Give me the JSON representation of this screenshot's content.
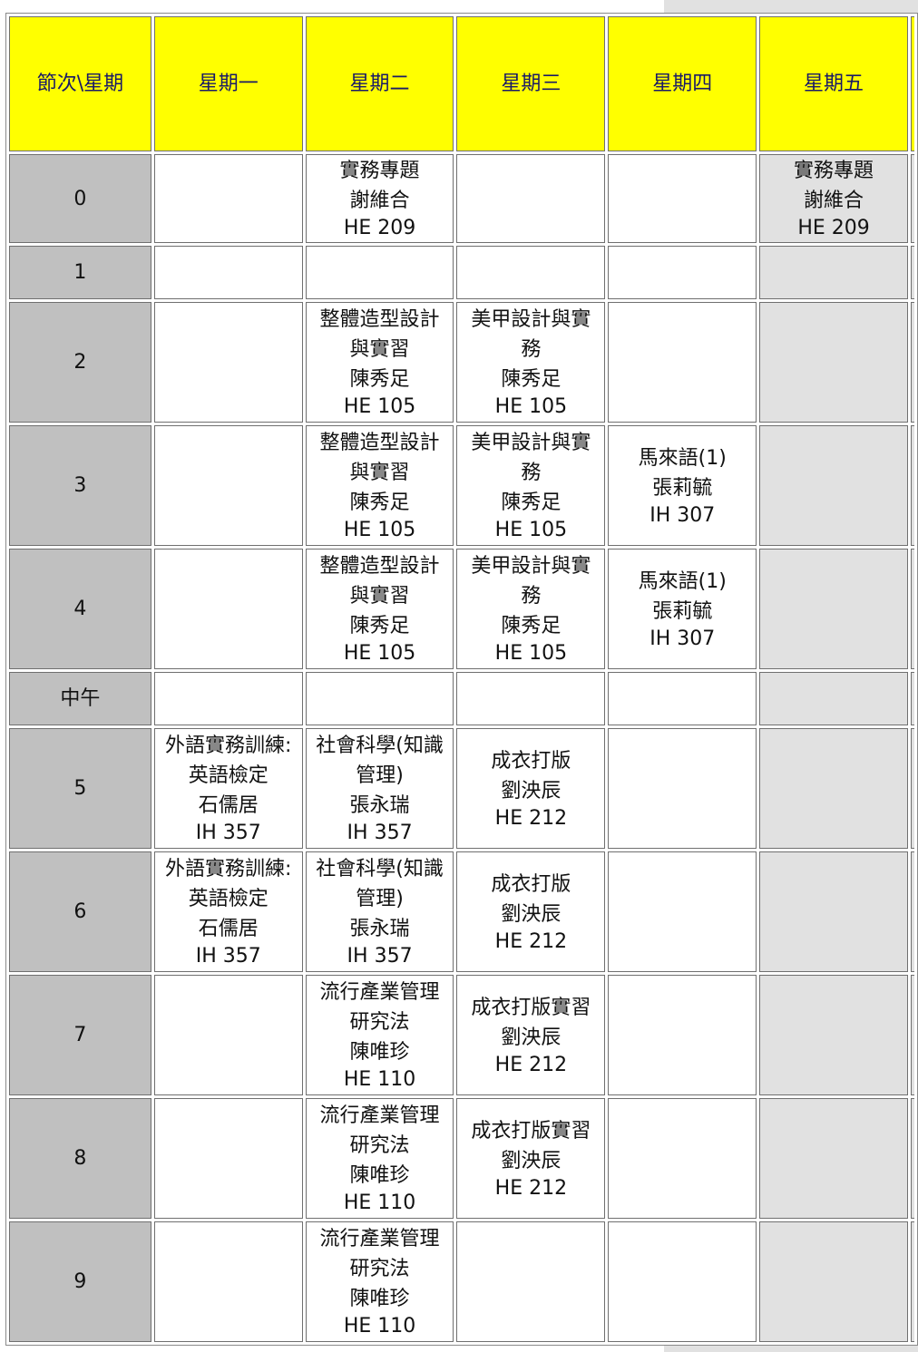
{
  "header": {
    "period_label": "節次\\星期",
    "days": [
      "星期一",
      "星期二",
      "星期三",
      "星期四",
      "星期五"
    ]
  },
  "rows": [
    {
      "period": "0",
      "cells": [
        null,
        {
          "title": "實務專題",
          "teacher": "謝維合",
          "room": "HE 209"
        },
        null,
        null,
        {
          "title": "實務專題",
          "teacher": "謝維合",
          "room": "HE 209"
        }
      ]
    },
    {
      "period": "1",
      "cells": [
        null,
        null,
        null,
        null,
        null
      ]
    },
    {
      "period": "2",
      "cells": [
        null,
        {
          "title": "整體造型設計與實習",
          "teacher": "陳秀足",
          "room": "HE 105"
        },
        {
          "title": "美甲設計與實務",
          "teacher": "陳秀足",
          "room": "HE 105"
        },
        null,
        null
      ]
    },
    {
      "period": "3",
      "cells": [
        null,
        {
          "title": "整體造型設計與實習",
          "teacher": "陳秀足",
          "room": "HE 105"
        },
        {
          "title": "美甲設計與實務",
          "teacher": "陳秀足",
          "room": "HE 105"
        },
        {
          "title": "馬來語(1)",
          "teacher": "張莉毓",
          "room": "IH 307"
        },
        null
      ]
    },
    {
      "period": "4",
      "cells": [
        null,
        {
          "title": "整體造型設計與實習",
          "teacher": "陳秀足",
          "room": "HE 105"
        },
        {
          "title": "美甲設計與實務",
          "teacher": "陳秀足",
          "room": "HE 105"
        },
        {
          "title": "馬來語(1)",
          "teacher": "張莉毓",
          "room": "IH 307"
        },
        null
      ]
    },
    {
      "period": "中午",
      "cells": [
        null,
        null,
        null,
        null,
        null
      ]
    },
    {
      "period": "5",
      "cells": [
        {
          "title": "外語實務訓練:英語檢定",
          "teacher": "石儒居",
          "room": "IH 357"
        },
        {
          "title": "社會科學(知識管理)",
          "teacher": "張永瑞",
          "room": "IH 357"
        },
        {
          "title": "成衣打版",
          "teacher": "劉泱辰",
          "room": "HE 212"
        },
        null,
        null
      ]
    },
    {
      "period": "6",
      "cells": [
        {
          "title": "外語實務訓練:英語檢定",
          "teacher": "石儒居",
          "room": "IH 357"
        },
        {
          "title": "社會科學(知識管理)",
          "teacher": "張永瑞",
          "room": "IH 357"
        },
        {
          "title": "成衣打版",
          "teacher": "劉泱辰",
          "room": "HE 212"
        },
        null,
        null
      ]
    },
    {
      "period": "7",
      "cells": [
        null,
        {
          "title": "流行產業管理研究法",
          "teacher": "陳唯珍",
          "room": "HE 110"
        },
        {
          "title": "成衣打版實習",
          "teacher": "劉泱辰",
          "room": "HE 212"
        },
        null,
        null
      ]
    },
    {
      "period": "8",
      "cells": [
        null,
        {
          "title": "流行產業管理研究法",
          "teacher": "陳唯珍",
          "room": "HE 110"
        },
        {
          "title": "成衣打版實習",
          "teacher": "劉泱辰",
          "room": "HE 212"
        },
        null,
        null
      ]
    },
    {
      "period": "9",
      "cells": [
        null,
        {
          "title": "流行產業管理研究法",
          "teacher": "陳唯珍",
          "room": "HE 110"
        },
        null,
        null,
        null
      ]
    }
  ],
  "colors": {
    "header_bg": "#ffff00",
    "period_bg": "#c0c0c0",
    "cell_bg": "#ffffff",
    "shade_bg": "#e1e1e1"
  }
}
